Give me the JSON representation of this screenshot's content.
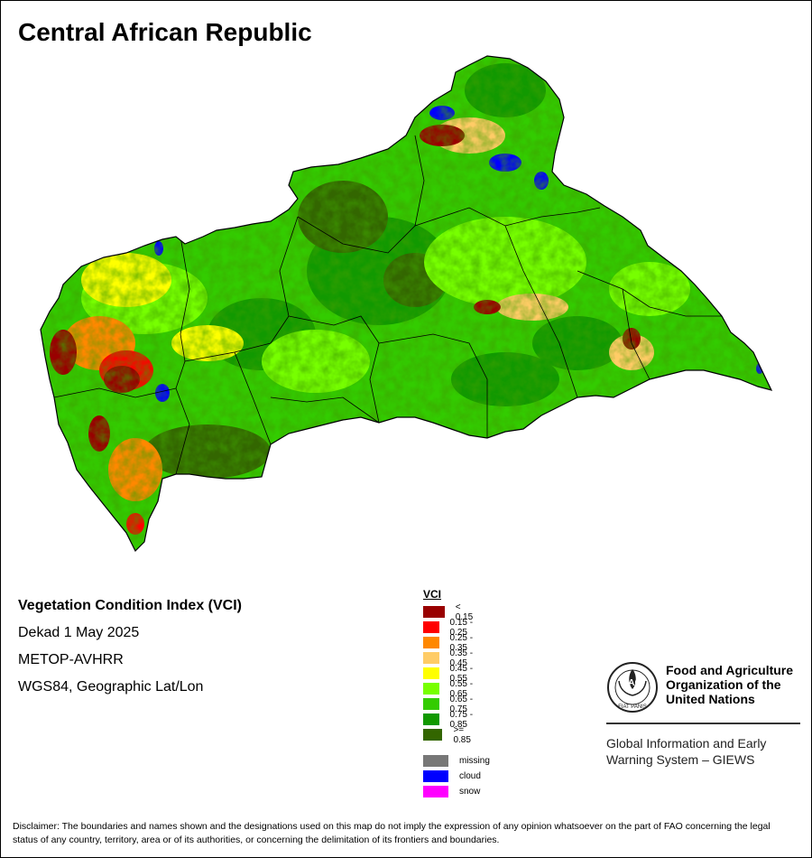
{
  "title": "Central African Republic",
  "info": {
    "index_name": "Vegetation Condition Index (VCI)",
    "period": "Dekad 1 May 2025",
    "sensor": "METOP-AVHRR",
    "projection": "WGS84, Geographic Lat/Lon"
  },
  "legend": {
    "title": "VCI",
    "classes": [
      {
        "label": "< 0.15",
        "color": "#990000"
      },
      {
        "label": "0.15 - 0.25",
        "color": "#ff0000"
      },
      {
        "label": "0.25 - 0.35",
        "color": "#ff8800"
      },
      {
        "label": "0.35 - 0.45",
        "color": "#ffcc66"
      },
      {
        "label": "0.45 - 0.55",
        "color": "#ffff00"
      },
      {
        "label": "0.55 - 0.65",
        "color": "#77ff00"
      },
      {
        "label": "0.65 - 0.75",
        "color": "#33cc00"
      },
      {
        "label": "0.75 - 0.85",
        "color": "#119900"
      },
      {
        "label": ">= 0.85",
        "color": "#336600"
      }
    ],
    "special": [
      {
        "label": "missing",
        "color": "#777777"
      },
      {
        "label": "cloud",
        "color": "#0000ff"
      },
      {
        "label": "snow",
        "color": "#ff00ff"
      }
    ]
  },
  "fao": {
    "name_line1": "Food and Agriculture",
    "name_line2": "Organization of the",
    "name_line3": "United Nations",
    "logo_text": "FAO",
    "motto": "FIAT PANIS",
    "giews_line1": "Global Information and Early",
    "giews_line2": "Warning System – GIEWS"
  },
  "disclaimer": "Disclaimer: The boundaries and names shown and the designations used on this map do not imply the expression of any opinion whatsoever on the part of FAO concerning the legal status of any country, territory, area or of its authorities, or concerning the delimitation of its frontiers and boundaries."
}
